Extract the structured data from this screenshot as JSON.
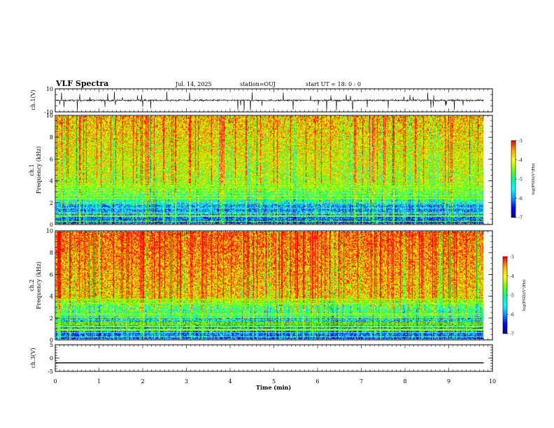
{
  "header": {
    "title": "VLF Spectra",
    "date": "Jul. 14, 2025",
    "station": "station=OUJ",
    "start": "start UT = 18: 0 : 0"
  },
  "colors": {
    "background": "#ffffff",
    "axis": "#000000",
    "trace": "#000000",
    "colormap": [
      "#000080",
      "#0000ff",
      "#00a0ff",
      "#00ffff",
      "#00ff80",
      "#80ff00",
      "#ffff00",
      "#ffa000",
      "#ff0000",
      "#ffffff"
    ]
  },
  "chart_data": [
    {
      "type": "line",
      "panel": "ch1-waveform",
      "ylabel": "ch.1(V)",
      "ylim": [
        -10,
        10
      ],
      "yticks": [
        "10",
        "-10"
      ],
      "xlim": [
        0,
        10
      ],
      "series": [
        {
          "baseline": 0,
          "noise_amplitude": 1.5,
          "spike_amplitude": 9
        }
      ]
    },
    {
      "type": "heatmap",
      "panel": "ch1-spectrogram",
      "ylabel": [
        "ch.1",
        "Frequency (kHz)"
      ],
      "ylim": [
        0,
        10
      ],
      "yticks": [
        "0",
        "2",
        "4",
        "6",
        "8",
        "10"
      ],
      "xlim": [
        0,
        10
      ],
      "data_extent_min": 9.8,
      "colorbar": {
        "label": "log(PSD)(V²/Hz)",
        "range": [
          -7,
          -3
        ],
        "ticks": [
          "-3",
          "-4",
          "-5",
          "-6",
          "-7"
        ]
      }
    },
    {
      "type": "heatmap",
      "panel": "ch2-spectrogram",
      "ylabel": [
        "ch.2",
        "Frequency (kHz)"
      ],
      "ylim": [
        0,
        10
      ],
      "yticks": [
        "0",
        "2",
        "4",
        "6",
        "8",
        "10"
      ],
      "xlim": [
        0,
        10
      ],
      "data_extent_min": 9.8,
      "colorbar": {
        "label": "log(PSD)(V²/Hz)",
        "range": [
          -7,
          -3
        ],
        "ticks": [
          "-3",
          "-4",
          "-5",
          "-6",
          "-7"
        ]
      }
    },
    {
      "type": "line",
      "panel": "ch3-waveform",
      "ylabel": "ch.3(V)",
      "ylim": [
        -5,
        5
      ],
      "yticks": [
        "5",
        "0",
        "-5"
      ],
      "xlim": [
        0,
        10
      ],
      "xlabel": "Time (min)",
      "xticks": [
        "0",
        "1",
        "2",
        "3",
        "4",
        "5",
        "6",
        "7",
        "8",
        "9",
        "10"
      ],
      "series": [
        {
          "constant": -1.8
        }
      ]
    }
  ]
}
